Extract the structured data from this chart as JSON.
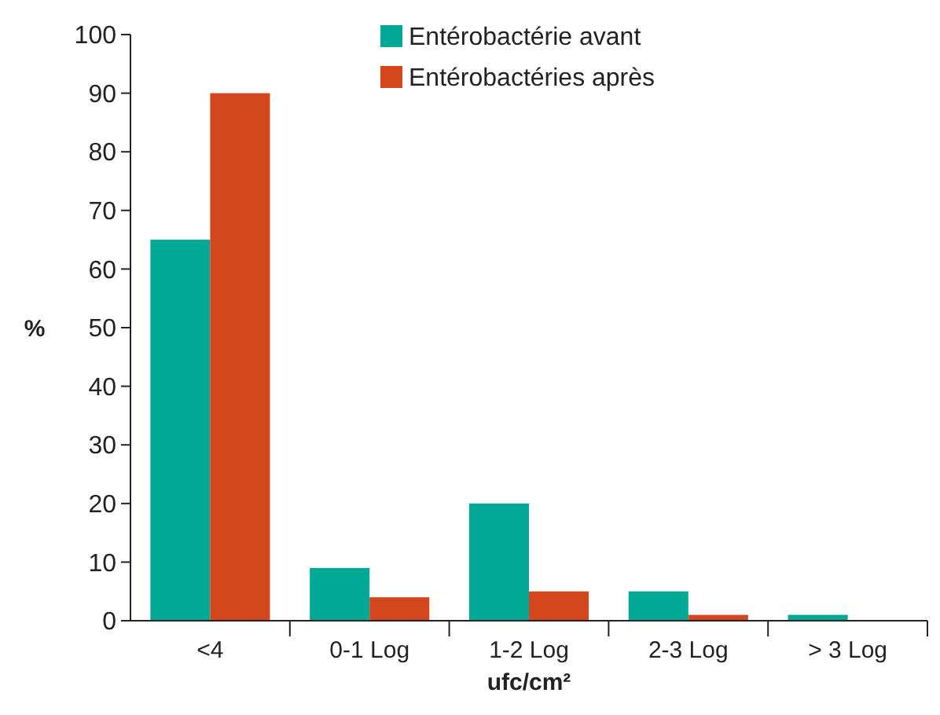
{
  "chart_data": {
    "type": "bar",
    "xlabel": "ufc/cm²",
    "ylabel": "%",
    "categories": [
      "<4",
      "0-1 Log",
      "1-2 Log",
      "2-3 Log",
      "> 3 Log"
    ],
    "series": [
      {
        "name": "Entérobactérie avant",
        "color": "#00a896",
        "values": [
          65,
          9,
          20,
          5,
          1
        ]
      },
      {
        "name": "Entérobactéries après",
        "color": "#d4461c",
        "values": [
          90,
          4,
          5,
          1,
          0
        ]
      }
    ],
    "ylim": [
      0,
      100
    ],
    "yticks": [
      0,
      10,
      20,
      30,
      40,
      50,
      60,
      70,
      80,
      90,
      100
    ],
    "grid": false,
    "legend": "top"
  }
}
